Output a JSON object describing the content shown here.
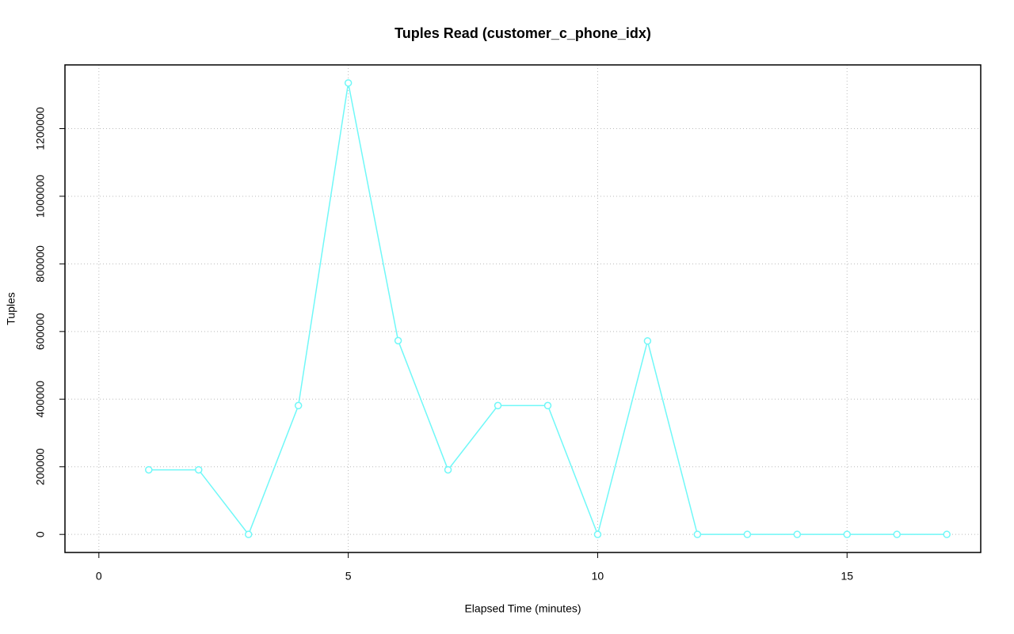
{
  "chart_data": {
    "type": "line",
    "title": "Tuples Read (customer_c_phone_idx)",
    "x_label": "Elapsed Time (minutes)",
    "y_label": "Tuples",
    "x": [
      1,
      2,
      3,
      4,
      5,
      6,
      7,
      8,
      9,
      10,
      11,
      12,
      13,
      14,
      15,
      16,
      17
    ],
    "series": [
      {
        "color": "#70f8f8",
        "values": [
          191000,
          191000,
          0,
          381000,
          1335000,
          573000,
          191000,
          381000,
          381000,
          0,
          572000,
          0,
          0,
          0,
          0,
          0,
          0
        ]
      }
    ],
    "xlim": [
      -0.68,
      17.68
    ],
    "xticks": [
      0,
      5,
      10,
      15
    ],
    "ylim": [
      -53400,
      1388400
    ],
    "yticks": [
      0,
      200000,
      400000,
      600000,
      800000,
      1000000,
      1200000
    ],
    "grid": true
  }
}
